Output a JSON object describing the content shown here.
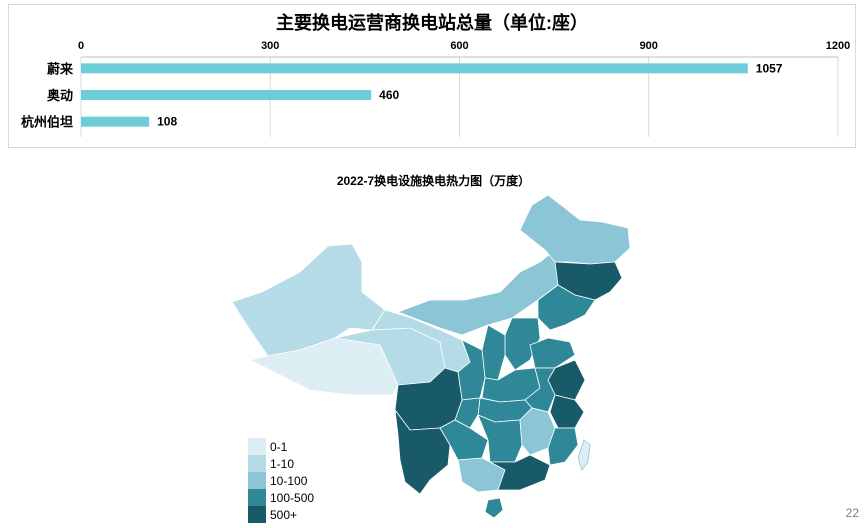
{
  "top_chart": {
    "title": "主要换电运营商换电站总量（单位:座）"
  },
  "map_chart": {
    "title": "2022-7换电设施换电热力图（万度）",
    "legend": [
      {
        "label": "0-1",
        "color": "#dcedf3"
      },
      {
        "label": "1-10",
        "color": "#b5dbe6"
      },
      {
        "label": "10-100",
        "color": "#8cc5d5"
      },
      {
        "label": "100-500",
        "color": "#2f8897"
      },
      {
        "label": "500+",
        "color": "#195a68"
      }
    ]
  },
  "page_number": "22",
  "chart_data": [
    {
      "type": "bar",
      "orientation": "horizontal",
      "title": "主要换电运营商换电站总量（单位:座）",
      "categories": [
        "蔚来",
        "奥动",
        "杭州伯坦"
      ],
      "values": [
        1057,
        460,
        108
      ],
      "data_labels": [
        "1057",
        "460",
        "108"
      ],
      "xlim": [
        0,
        1200
      ],
      "x_ticks": [
        0,
        300,
        600,
        900,
        1200
      ],
      "x_tick_labels": [
        "0",
        "300",
        "600",
        "900",
        "1200"
      ],
      "x_axis_position": "top",
      "grid": true,
      "bar_color": "#6ccdd8"
    }
  ]
}
